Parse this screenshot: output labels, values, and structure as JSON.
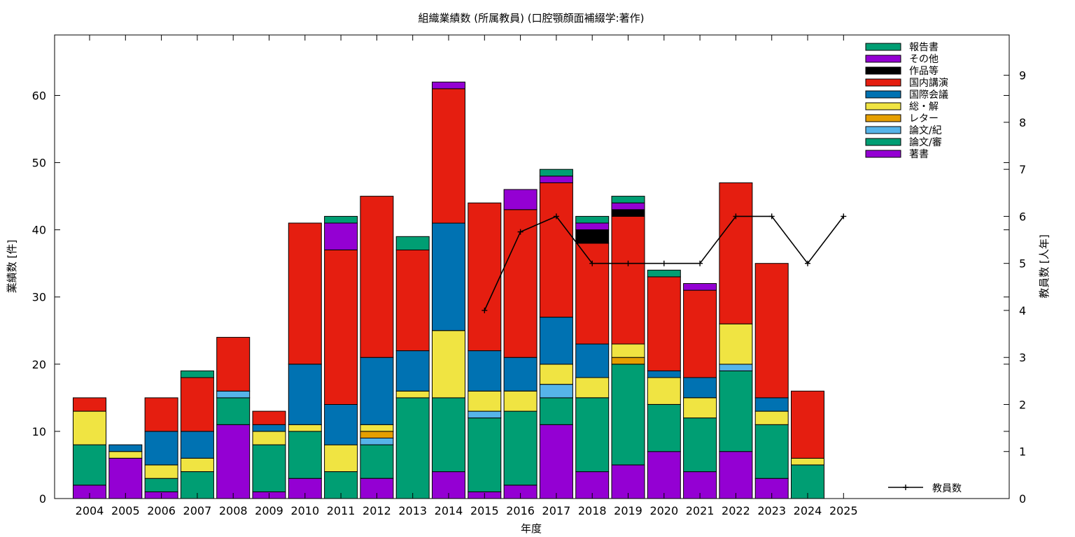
{
  "chart_data": {
    "type": "bar",
    "stacked": true,
    "title": "組織業績数 (所属教員) (口腔顎顔面補綴学:著作)",
    "xlabel": "年度",
    "ylabel": "業績数 [件]",
    "y2label": "教員数 [人年]",
    "ylim": [
      0,
      69
    ],
    "y2lim": [
      0,
      9.857
    ],
    "yticks": [
      0,
      10,
      20,
      30,
      40,
      50,
      60
    ],
    "y2ticks": [
      0,
      1,
      2,
      3,
      4,
      5,
      6,
      7,
      8,
      9
    ],
    "grid": false,
    "legend_position": "top-right",
    "categories": [
      "2004",
      "2005",
      "2006",
      "2007",
      "2008",
      "2009",
      "2010",
      "2011",
      "2012",
      "2013",
      "2014",
      "2015",
      "2016",
      "2017",
      "2018",
      "2019",
      "2020",
      "2021",
      "2022",
      "2023",
      "2024",
      "2025"
    ],
    "series": [
      {
        "name": "著書",
        "color": "#9400d3",
        "values": [
          2,
          6,
          1,
          0,
          11,
          1,
          3,
          0,
          3,
          0,
          4,
          1,
          2,
          11,
          4,
          5,
          7,
          4,
          7,
          3,
          0,
          0
        ]
      },
      {
        "name": "論文/審",
        "color": "#009e73",
        "values": [
          6,
          0,
          2,
          4,
          4,
          7,
          7,
          4,
          5,
          15,
          11,
          11,
          11,
          4,
          11,
          15,
          7,
          8,
          12,
          8,
          5,
          0
        ]
      },
      {
        "name": "論文/紀",
        "color": "#56b4e9",
        "values": [
          0,
          0,
          0,
          0,
          1,
          0,
          0,
          0,
          1,
          0,
          0,
          1,
          0,
          2,
          0,
          0,
          0,
          0,
          1,
          0,
          0,
          0
        ]
      },
      {
        "name": "レター",
        "color": "#e69f00",
        "values": [
          0,
          0,
          0,
          0,
          0,
          0,
          0,
          0,
          1,
          0,
          0,
          0,
          0,
          0,
          0,
          1,
          0,
          0,
          0,
          0,
          0,
          0
        ]
      },
      {
        "name": "総・解",
        "color": "#f0e442",
        "values": [
          5,
          1,
          2,
          2,
          0,
          2,
          1,
          4,
          1,
          1,
          10,
          3,
          3,
          3,
          3,
          2,
          4,
          3,
          6,
          2,
          1,
          0
        ]
      },
      {
        "name": "国際会議",
        "color": "#0072b2",
        "values": [
          0,
          1,
          5,
          4,
          0,
          1,
          9,
          6,
          10,
          6,
          16,
          6,
          5,
          7,
          5,
          0,
          1,
          3,
          0,
          2,
          0,
          0
        ]
      },
      {
        "name": "国内講演",
        "color": "#e51e10",
        "values": [
          2,
          0,
          5,
          8,
          8,
          2,
          21,
          23,
          24,
          15,
          20,
          22,
          22,
          20,
          15,
          19,
          14,
          13,
          21,
          20,
          10,
          0
        ]
      },
      {
        "name": "作品等",
        "color": "#000000",
        "values": [
          0,
          0,
          0,
          0,
          0,
          0,
          0,
          0,
          0,
          0,
          0,
          0,
          0,
          0,
          2,
          1,
          0,
          0,
          0,
          0,
          0,
          0
        ]
      },
      {
        "name": "その他",
        "color": "#9400d3",
        "values": [
          0,
          0,
          0,
          0,
          0,
          0,
          0,
          4,
          0,
          0,
          1,
          0,
          3,
          1,
          1,
          1,
          0,
          1,
          0,
          0,
          0,
          0
        ]
      },
      {
        "name": "報告書",
        "color": "#009e73",
        "values": [
          0,
          0,
          0,
          1,
          0,
          0,
          0,
          1,
          0,
          2,
          0,
          0,
          0,
          1,
          1,
          1,
          1,
          0,
          0,
          0,
          0,
          0
        ]
      }
    ],
    "line": {
      "name": "教員数",
      "color": "#000000",
      "axis": "right",
      "points": [
        {
          "x": "2015",
          "y": 4
        },
        {
          "x": "2016",
          "y": 5.67
        },
        {
          "x": "2017",
          "y": 6
        },
        {
          "x": "2018",
          "y": 5
        },
        {
          "x": "2019",
          "y": 5
        },
        {
          "x": "2020",
          "y": 5
        },
        {
          "x": "2021",
          "y": 5
        },
        {
          "x": "2022",
          "y": 6
        },
        {
          "x": "2023",
          "y": 6
        },
        {
          "x": "2024",
          "y": 5
        },
        {
          "x": "2025",
          "y": 6
        }
      ]
    }
  }
}
